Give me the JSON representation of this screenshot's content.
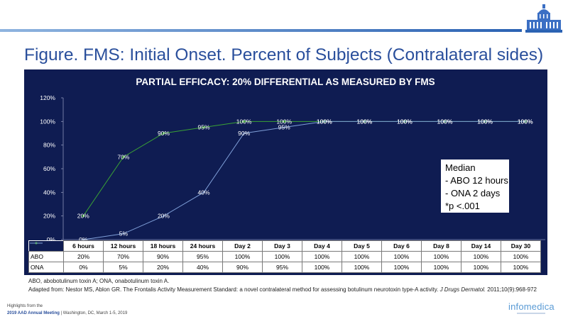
{
  "slide_title": "Figure. FMS: Initial Onset. Percent of Subjects (Contralateral sides)",
  "chart_data": {
    "type": "line",
    "title": "PARTIAL EFFICACY: 20% DIFFERENTIAL AS MEASURED BY FMS",
    "categories": [
      "6 hours",
      "12 hours",
      "18 hours",
      "24 hours",
      "Day 2",
      "Day 3",
      "Day 4",
      "Day 5",
      "Day 6",
      "Day 8",
      "Day 14",
      "Day 30"
    ],
    "y_ticks": [
      "0%",
      "20%",
      "40%",
      "60%",
      "80%",
      "100%",
      "120%"
    ],
    "ylim": [
      0,
      120
    ],
    "grid": false,
    "series": [
      {
        "name": "ABO",
        "values": [
          20,
          70,
          90,
          95,
          100,
          100,
          100,
          100,
          100,
          100,
          100,
          100
        ],
        "labels": [
          "20%",
          "70%",
          "90%",
          "95%",
          "100%",
          "100%",
          "100%",
          "100%",
          "100%",
          "100%",
          "100%",
          "100%"
        ],
        "color": "#3aa335"
      },
      {
        "name": "ONA",
        "values": [
          0,
          5,
          20,
          40,
          90,
          95,
          100,
          100,
          100,
          100,
          100,
          100
        ],
        "labels": [
          "0%",
          "5%",
          "20%",
          "40%",
          "90%",
          "95%",
          "100%",
          "100%",
          "100%",
          "100%",
          "100%",
          "100%"
        ],
        "color": "#7f9fd8"
      }
    ],
    "annotation": [
      "Median",
      "- ABO 12 hours",
      "- ONA 2 days",
      "*p <.001"
    ]
  },
  "footnotes": {
    "abbreviations": "ABO, abobotulinum toxin A; ONA, onabotulinum toxin A.",
    "adapted_prefix": "Adapted from: Nestor MS, Ablon GR. The Frontalis Activity Measurement Standard: a novel contralateral method for assessing botulinum neurotoxin type-A activity.",
    "journal": "J Drugs Dermatol.",
    "citation_rest": "2011;10(9):968-972"
  },
  "footer": {
    "highlights": "Highlights from the",
    "meeting": "2019 AAD Annual Meeting",
    "location": "| Washington, DC, March 1-5, 2019",
    "logo": "infomedica"
  }
}
